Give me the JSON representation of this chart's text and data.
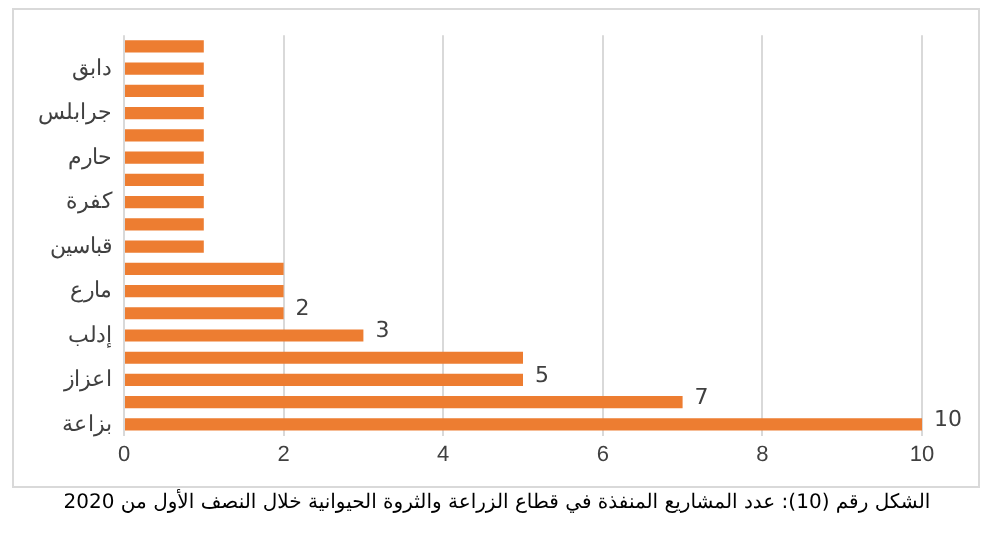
{
  "chart_data": {
    "type": "bar",
    "orientation": "horizontal",
    "categories": [
      null,
      "دابق",
      null,
      "جرابلس",
      null,
      "حارم",
      null,
      "كفرة",
      null,
      "قباسين",
      null,
      "مارع",
      null,
      "إدلب",
      null,
      "اعزاز",
      null,
      "بزاعة"
    ],
    "values": [
      1,
      1,
      1,
      1,
      1,
      1,
      1,
      1,
      1,
      1,
      2,
      2,
      2,
      3,
      5,
      5,
      7,
      10
    ],
    "value_labels": [
      null,
      null,
      null,
      null,
      null,
      null,
      null,
      null,
      null,
      null,
      null,
      null,
      "2",
      "3",
      null,
      "5",
      "7",
      "10"
    ],
    "color": "#ed7d31",
    "xlim": [
      0,
      10
    ],
    "xticks": [
      0,
      2,
      4,
      6,
      8,
      10
    ],
    "grid": "x",
    "legend": false,
    "annotations": [
      "الشكل رقم (10): عدد المشاريع المنفذة في قطاع الزراعة والثروة الحيوانية خلال النصف الأول من 2020"
    ]
  }
}
